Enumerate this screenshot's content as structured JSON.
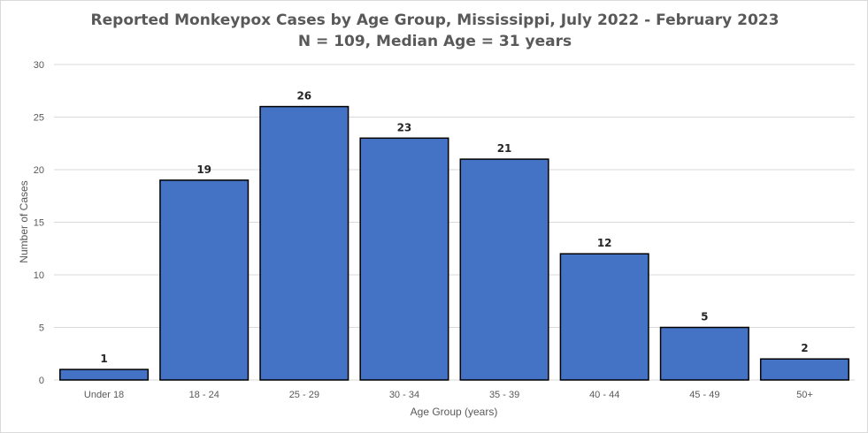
{
  "chart_data": {
    "type": "bar",
    "title": "Reported Monkeypox Cases by Age Group, Mississippi,  July 2022 - February 2023",
    "subtitle": "N = 109, Median Age = 31 years",
    "xlabel": "Age Group (years)",
    "ylabel": "Number of Cases",
    "categories": [
      "Under 18",
      "18 - 24",
      "25 - 29",
      "30 - 34",
      "35 - 39",
      "40 - 44",
      "45 - 49",
      "50+"
    ],
    "values": [
      1,
      19,
      26,
      23,
      21,
      12,
      5,
      2
    ],
    "ylim": [
      0,
      30
    ],
    "yticks": [
      "0",
      "5",
      "10",
      "15",
      "20",
      "25",
      "30"
    ],
    "grid": true,
    "legend": "none",
    "colors": {
      "bar": "#4472c4",
      "bar_outline": "#000000",
      "grid": "#d9d9d9"
    }
  }
}
